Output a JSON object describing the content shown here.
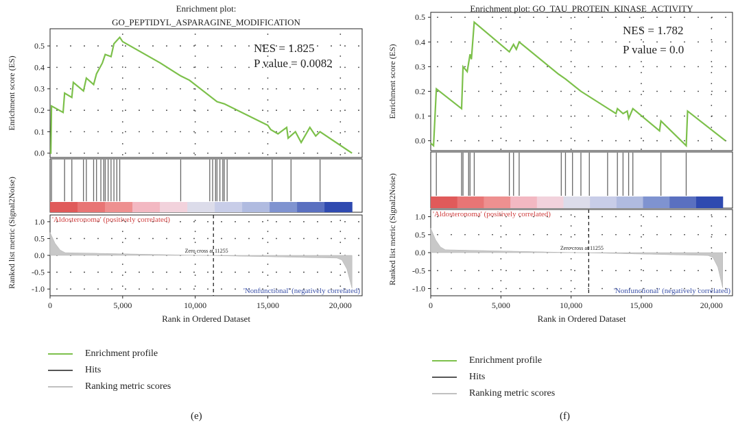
{
  "panels": [
    {
      "id": "e",
      "label": "(e)",
      "title_lines": [
        "Enrichment plot:",
        "GO_PEPTIDYL_ASPARAGINE_MODIFICATION"
      ],
      "nes_text": "NES = 1.825",
      "pvalue_text": "P value = 0.0082",
      "es_ylabel": "Enrichment score (ES)",
      "es_ylim": [
        -0.02,
        0.58
      ],
      "es_yticks": [
        "0.0",
        "0.1",
        "0.2",
        "0.3",
        "0.4",
        "0.5"
      ],
      "es_ytick_values": [
        0.0,
        0.1,
        0.2,
        0.3,
        0.4,
        0.5
      ],
      "xlim": [
        0,
        21500
      ],
      "xticks": [
        "0",
        "5,000",
        "10,000",
        "15,000",
        "20,000"
      ],
      "xtick_values": [
        0,
        5000,
        10000,
        15000,
        20000
      ],
      "xlabel": "Rank in Ordered Dataset",
      "rank_ylabel": "Ranked list metric (Signal2Noise)",
      "rank_yticks": [
        "1.0",
        "0.5",
        "0.0",
        "-0.5",
        "-1.0"
      ],
      "rank_ytick_values": [
        1.0,
        0.5,
        0.0,
        -0.5,
        -1.0
      ],
      "rank_ylim": [
        -1.2,
        1.2
      ],
      "pos_label": "'Aldosteronoma' (positively correlated)",
      "neg_label": "'Nonfunctional' (negatively correlated)",
      "zero_cross_label": "Zero cross at 11255",
      "zero_cross": 11255,
      "n_genes": 20800,
      "es_points": [
        [
          0,
          0.0
        ],
        [
          50,
          0.0
        ],
        [
          100,
          0.22
        ],
        [
          900,
          0.19
        ],
        [
          1000,
          0.28
        ],
        [
          1500,
          0.26
        ],
        [
          1600,
          0.33
        ],
        [
          2300,
          0.29
        ],
        [
          2500,
          0.35
        ],
        [
          3000,
          0.32
        ],
        [
          3200,
          0.37
        ],
        [
          3600,
          0.42
        ],
        [
          3800,
          0.46
        ],
        [
          4200,
          0.45
        ],
        [
          4400,
          0.51
        ],
        [
          4800,
          0.54
        ],
        [
          5000,
          0.52
        ],
        [
          7600,
          0.42
        ],
        [
          9000,
          0.36
        ],
        [
          9600,
          0.34
        ],
        [
          11500,
          0.24
        ],
        [
          12000,
          0.23
        ],
        [
          15000,
          0.13
        ],
        [
          15200,
          0.11
        ],
        [
          15700,
          0.09
        ],
        [
          16300,
          0.12
        ],
        [
          16400,
          0.07
        ],
        [
          16900,
          0.1
        ],
        [
          17300,
          0.05
        ],
        [
          17900,
          0.12
        ],
        [
          18300,
          0.08
        ],
        [
          18600,
          0.1
        ],
        [
          20800,
          0.0
        ]
      ],
      "hits": [
        100,
        1000,
        1500,
        2300,
        2500,
        3000,
        3200,
        3500,
        3700,
        3800,
        4000,
        4200,
        4400,
        4600,
        4800,
        9000,
        11000,
        11200,
        11400,
        11500,
        11700,
        11900,
        12000,
        12200,
        15300,
        16600,
        18600
      ],
      "heatmap_colors": [
        "#e05a5a",
        "#e87575",
        "#ee9090",
        "#f3b8c2",
        "#f2d2dc",
        "#dcdcea",
        "#c8cde8",
        "#b0bbe0",
        "#7f93d0",
        "#5a70c0",
        "#2f4ab0"
      ]
    },
    {
      "id": "f",
      "label": "(f)",
      "title_lines": [
        "Enrichment plot: GO_TAU_PROTEIN_KINASE_ACTIVITY"
      ],
      "nes_text": "NES = 1.782",
      "pvalue_text": "P value = 0.0",
      "es_ylabel": "Enrichment score (ES)",
      "es_ylim": [
        -0.04,
        0.52
      ],
      "es_yticks": [
        "0.0",
        "0.1",
        "0.2",
        "0.3",
        "0.4",
        "0.5"
      ],
      "es_ytick_values": [
        0.0,
        0.1,
        0.2,
        0.3,
        0.4,
        0.5
      ],
      "xlim": [
        0,
        21500
      ],
      "xticks": [
        "0",
        "5,000",
        "10,000",
        "15,000",
        "20,000"
      ],
      "xtick_values": [
        0,
        5000,
        10000,
        15000,
        20000
      ],
      "xlabel": "Rank in Ordered Dataset",
      "rank_ylabel": "Ranked list metric (Signal2Noise)",
      "rank_yticks": [
        "1.0",
        "0.5",
        "0.0",
        "-0.5",
        "-1.0"
      ],
      "rank_ytick_values": [
        1.0,
        0.5,
        0.0,
        -0.5,
        -1.0
      ],
      "rank_ylim": [
        -1.2,
        1.2
      ],
      "pos_label": "'Aldosteronoma' (positively correlated)",
      "neg_label": "'Nonfunctional' (negatively correlated)",
      "zero_cross_label": "Zero cross at 11255",
      "zero_cross": 11255,
      "n_genes": 20800,
      "es_points": [
        [
          0,
          -0.01
        ],
        [
          200,
          -0.02
        ],
        [
          400,
          0.21
        ],
        [
          2200,
          0.13
        ],
        [
          2300,
          0.3
        ],
        [
          2600,
          0.28
        ],
        [
          2800,
          0.35
        ],
        [
          2900,
          0.33
        ],
        [
          3100,
          0.48
        ],
        [
          5600,
          0.36
        ],
        [
          5900,
          0.39
        ],
        [
          6100,
          0.37
        ],
        [
          6300,
          0.4
        ],
        [
          9100,
          0.27
        ],
        [
          9600,
          0.25
        ],
        [
          10700,
          0.2
        ],
        [
          13200,
          0.11
        ],
        [
          13300,
          0.13
        ],
        [
          13700,
          0.11
        ],
        [
          14000,
          0.12
        ],
        [
          14100,
          0.09
        ],
        [
          14400,
          0.13
        ],
        [
          16300,
          0.04
        ],
        [
          16400,
          0.08
        ],
        [
          18200,
          -0.02
        ],
        [
          18300,
          0.12
        ],
        [
          21000,
          0.0
        ]
      ],
      "hits": [
        400,
        2200,
        2300,
        2700,
        2800,
        3100,
        5600,
        5900,
        6300,
        9300,
        9600,
        10100,
        10700,
        11300,
        12600,
        13300,
        13700,
        14100,
        14400,
        16400,
        18200
      ],
      "heatmap_colors": [
        "#e05a5a",
        "#e87575",
        "#ee9090",
        "#f3b8c2",
        "#f2d2dc",
        "#dcdcea",
        "#c8cde8",
        "#b0bbe0",
        "#7f93d0",
        "#5a70c0",
        "#2f4ab0"
      ]
    }
  ],
  "legend": {
    "items": [
      {
        "label": "Enrichment profile",
        "color": "#7cc04a"
      },
      {
        "label": "Hits",
        "color": "#555555"
      },
      {
        "label": "Ranking metric scores",
        "color": "#c0c0c0"
      }
    ]
  },
  "chart_data": [
    {
      "type": "line",
      "title": "Enrichment plot: GO_PEPTIDYL_ASPARAGINE_MODIFICATION",
      "xlabel": "Rank in Ordered Dataset",
      "ylabel": "Enrichment score (ES)",
      "annotations": [
        "NES = 1.825",
        "P value = 0.0082"
      ],
      "xlim": [
        0,
        21500
      ],
      "ylim": [
        0.0,
        0.55
      ],
      "series": [
        {
          "name": "Enrichment profile",
          "x": [
            0,
            100,
            900,
            1000,
            1500,
            1600,
            2300,
            2500,
            3000,
            3200,
            3600,
            3800,
            4200,
            4400,
            4800,
            5000,
            7600,
            9000,
            9600,
            11500,
            12000,
            15000,
            15200,
            15700,
            16300,
            16400,
            16900,
            17300,
            17900,
            18300,
            18600,
            20800
          ],
          "y": [
            0.0,
            0.22,
            0.19,
            0.28,
            0.26,
            0.33,
            0.29,
            0.35,
            0.32,
            0.37,
            0.42,
            0.46,
            0.45,
            0.51,
            0.54,
            0.52,
            0.42,
            0.36,
            0.34,
            0.24,
            0.23,
            0.13,
            0.11,
            0.09,
            0.12,
            0.07,
            0.1,
            0.05,
            0.12,
            0.08,
            0.1,
            0.0
          ]
        }
      ]
    },
    {
      "type": "line",
      "title": "Enrichment plot: GO_TAU_PROTEIN_KINASE_ACTIVITY",
      "xlabel": "Rank in Ordered Dataset",
      "ylabel": "Enrichment score (ES)",
      "annotations": [
        "NES = 1.782",
        "P value = 0.0"
      ],
      "xlim": [
        0,
        21500
      ],
      "ylim": [
        0.0,
        0.5
      ],
      "series": [
        {
          "name": "Enrichment profile",
          "x": [
            0,
            200,
            400,
            2200,
            2300,
            2600,
            2800,
            2900,
            3100,
            5600,
            5900,
            6100,
            6300,
            9100,
            9600,
            10700,
            13200,
            13300,
            13700,
            14000,
            14100,
            14400,
            16300,
            16400,
            18200,
            18300,
            21000
          ],
          "y": [
            -0.01,
            -0.02,
            0.21,
            0.13,
            0.3,
            0.28,
            0.35,
            0.33,
            0.48,
            0.36,
            0.39,
            0.37,
            0.4,
            0.27,
            0.25,
            0.2,
            0.11,
            0.13,
            0.11,
            0.12,
            0.09,
            0.13,
            0.04,
            0.08,
            -0.02,
            0.12,
            0.0
          ]
        }
      ]
    }
  ]
}
